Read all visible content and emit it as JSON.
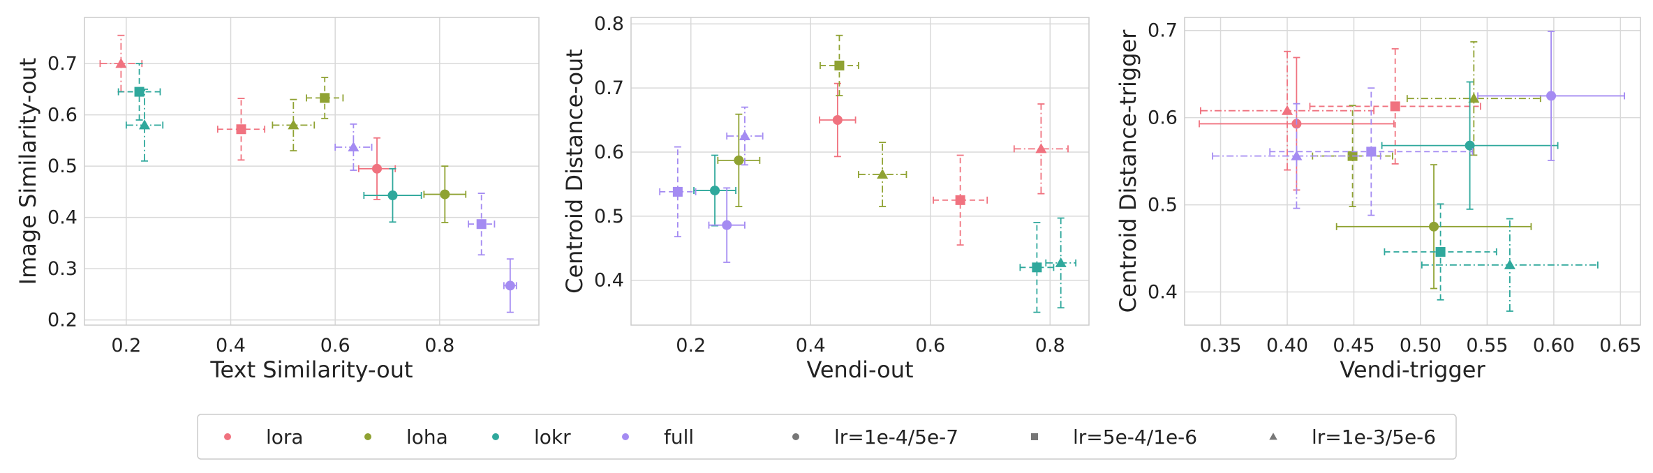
{
  "colors": {
    "lora": "#f0727f",
    "loha": "#8fa232",
    "lokr": "#2fa89c",
    "full": "#a48bf2",
    "neutral": "#777777"
  },
  "legend": {
    "entries": [
      {
        "label": "lora",
        "kind": "color",
        "key": "lora"
      },
      {
        "label": "loha",
        "kind": "color",
        "key": "loha"
      },
      {
        "label": "lokr",
        "kind": "color",
        "key": "lokr"
      },
      {
        "label": "full",
        "kind": "color",
        "key": "full"
      },
      {
        "label": "lr=1e-4/5e-7",
        "kind": "marker",
        "marker": "circle"
      },
      {
        "label": "lr=5e-4/1e-6",
        "kind": "marker",
        "marker": "square"
      },
      {
        "label": "lr=1e-3/5e-6",
        "kind": "marker",
        "marker": "triangle"
      }
    ]
  },
  "chart_data": [
    {
      "type": "scatter",
      "xlabel": "Text Similarity-out",
      "ylabel": "Image Similarity-out",
      "xlim": [
        0.12,
        0.99
      ],
      "ylim": [
        0.19,
        0.79
      ],
      "xticks": [
        "0.2",
        "0.4",
        "0.6",
        "0.8"
      ],
      "yticks": [
        "0.2",
        "0.3",
        "0.4",
        "0.5",
        "0.6",
        "0.7"
      ],
      "grid": true,
      "points": [
        {
          "series": "lora",
          "lr": "lr=1e-3/5e-6",
          "x": 0.19,
          "y": 0.7,
          "xerr": 0.04,
          "yerr": 0.055
        },
        {
          "series": "lora",
          "lr": "lr=5e-4/1e-6",
          "x": 0.42,
          "y": 0.572,
          "xerr": 0.045,
          "yerr": 0.06
        },
        {
          "series": "lora",
          "lr": "lr=1e-4/5e-7",
          "x": 0.68,
          "y": 0.495,
          "xerr": 0.035,
          "yerr": 0.06
        },
        {
          "series": "loha",
          "lr": "lr=1e-3/5e-6",
          "x": 0.52,
          "y": 0.58,
          "xerr": 0.04,
          "yerr": 0.05
        },
        {
          "series": "loha",
          "lr": "lr=5e-4/1e-6",
          "x": 0.58,
          "y": 0.633,
          "xerr": 0.035,
          "yerr": 0.04
        },
        {
          "series": "loha",
          "lr": "lr=1e-4/5e-7",
          "x": 0.81,
          "y": 0.445,
          "xerr": 0.04,
          "yerr": 0.055
        },
        {
          "series": "lokr",
          "lr": "lr=5e-4/1e-6",
          "x": 0.225,
          "y": 0.645,
          "xerr": 0.04,
          "yerr": 0.055
        },
        {
          "series": "lokr",
          "lr": "lr=1e-3/5e-6",
          "x": 0.235,
          "y": 0.58,
          "xerr": 0.035,
          "yerr": 0.07
        },
        {
          "series": "lokr",
          "lr": "lr=1e-4/5e-7",
          "x": 0.71,
          "y": 0.443,
          "xerr": 0.055,
          "yerr": 0.052
        },
        {
          "series": "full",
          "lr": "lr=1e-3/5e-6",
          "x": 0.635,
          "y": 0.537,
          "xerr": 0.035,
          "yerr": 0.045
        },
        {
          "series": "full",
          "lr": "lr=5e-4/1e-6",
          "x": 0.88,
          "y": 0.387,
          "xerr": 0.025,
          "yerr": 0.06
        },
        {
          "series": "full",
          "lr": "lr=1e-4/5e-7",
          "x": 0.935,
          "y": 0.267,
          "xerr": 0.012,
          "yerr": 0.052
        }
      ]
    },
    {
      "type": "scatter",
      "xlabel": "Vendi-out",
      "ylabel": "Centroid Distance-out",
      "xlim": [
        0.1,
        0.865
      ],
      "ylim": [
        0.33,
        0.81
      ],
      "xticks": [
        "0.2",
        "0.4",
        "0.6",
        "0.8"
      ],
      "yticks": [
        "0.4",
        "0.5",
        "0.6",
        "0.7",
        "0.8"
      ],
      "grid": true,
      "points": [
        {
          "series": "lora",
          "lr": "lr=1e-4/5e-7",
          "x": 0.445,
          "y": 0.65,
          "xerr": 0.03,
          "yerr": 0.057
        },
        {
          "series": "lora",
          "lr": "lr=5e-4/1e-6",
          "x": 0.65,
          "y": 0.525,
          "xerr": 0.045,
          "yerr": 0.07
        },
        {
          "series": "lora",
          "lr": "lr=1e-3/5e-6",
          "x": 0.785,
          "y": 0.605,
          "xerr": 0.045,
          "yerr": 0.07
        },
        {
          "series": "loha",
          "lr": "lr=5e-4/1e-6",
          "x": 0.448,
          "y": 0.735,
          "xerr": 0.032,
          "yerr": 0.047
        },
        {
          "series": "loha",
          "lr": "lr=1e-4/5e-7",
          "x": 0.28,
          "y": 0.587,
          "xerr": 0.035,
          "yerr": 0.072
        },
        {
          "series": "loha",
          "lr": "lr=1e-3/5e-6",
          "x": 0.52,
          "y": 0.565,
          "xerr": 0.04,
          "yerr": 0.05
        },
        {
          "series": "lokr",
          "lr": "lr=1e-4/5e-7",
          "x": 0.24,
          "y": 0.54,
          "xerr": 0.035,
          "yerr": 0.055
        },
        {
          "series": "lokr",
          "lr": "lr=5e-4/1e-6",
          "x": 0.778,
          "y": 0.42,
          "xerr": 0.028,
          "yerr": 0.07
        },
        {
          "series": "lokr",
          "lr": "lr=1e-3/5e-6",
          "x": 0.818,
          "y": 0.427,
          "xerr": 0.025,
          "yerr": 0.07
        },
        {
          "series": "full",
          "lr": "lr=5e-4/1e-6",
          "x": 0.178,
          "y": 0.538,
          "xerr": 0.03,
          "yerr": 0.07
        },
        {
          "series": "full",
          "lr": "lr=1e-4/5e-7",
          "x": 0.26,
          "y": 0.486,
          "xerr": 0.03,
          "yerr": 0.058
        },
        {
          "series": "full",
          "lr": "lr=1e-3/5e-6",
          "x": 0.29,
          "y": 0.625,
          "xerr": 0.03,
          "yerr": 0.045
        }
      ]
    },
    {
      "type": "scatter",
      "xlabel": "Vendi-trigger",
      "ylabel": "Centroid Distance-trigger",
      "xlim": [
        0.323,
        0.665
      ],
      "ylim": [
        0.362,
        0.715
      ],
      "xticks": [
        "0.35",
        "0.40",
        "0.45",
        "0.50",
        "0.55",
        "0.60",
        "0.65"
      ],
      "yticks": [
        "0.4",
        "0.5",
        "0.6",
        "0.7"
      ],
      "grid": true,
      "points": [
        {
          "series": "lora",
          "lr": "lr=1e-3/5e-6",
          "x": 0.4,
          "y": 0.608,
          "xerr": 0.065,
          "yerr": 0.068
        },
        {
          "series": "lora",
          "lr": "lr=1e-4/5e-7",
          "x": 0.407,
          "y": 0.593,
          "xerr": 0.073,
          "yerr": 0.076
        },
        {
          "series": "lora",
          "lr": "lr=5e-4/1e-6",
          "x": 0.481,
          "y": 0.613,
          "xerr": 0.064,
          "yerr": 0.066
        },
        {
          "series": "loha",
          "lr": "lr=5e-4/1e-6",
          "x": 0.449,
          "y": 0.556,
          "xerr": 0.03,
          "yerr": 0.058
        },
        {
          "series": "loha",
          "lr": "lr=1e-4/5e-7",
          "x": 0.51,
          "y": 0.475,
          "xerr": 0.073,
          "yerr": 0.071
        },
        {
          "series": "loha",
          "lr": "lr=1e-3/5e-6",
          "x": 0.54,
          "y": 0.622,
          "xerr": 0.05,
          "yerr": 0.065
        },
        {
          "series": "lokr",
          "lr": "lr=5e-4/1e-6",
          "x": 0.515,
          "y": 0.446,
          "xerr": 0.042,
          "yerr": 0.055
        },
        {
          "series": "lokr",
          "lr": "lr=1e-3/5e-6",
          "x": 0.567,
          "y": 0.431,
          "xerr": 0.066,
          "yerr": 0.053
        },
        {
          "series": "lokr",
          "lr": "lr=1e-4/5e-7",
          "x": 0.537,
          "y": 0.568,
          "xerr": 0.066,
          "yerr": 0.073
        },
        {
          "series": "full",
          "lr": "lr=1e-3/5e-6",
          "x": 0.407,
          "y": 0.556,
          "xerr": 0.063,
          "yerr": 0.06
        },
        {
          "series": "full",
          "lr": "lr=5e-4/1e-6",
          "x": 0.463,
          "y": 0.561,
          "xerr": 0.076,
          "yerr": 0.073
        },
        {
          "series": "full",
          "lr": "lr=1e-4/5e-7",
          "x": 0.598,
          "y": 0.625,
          "xerr": 0.055,
          "yerr": 0.074
        }
      ]
    }
  ]
}
